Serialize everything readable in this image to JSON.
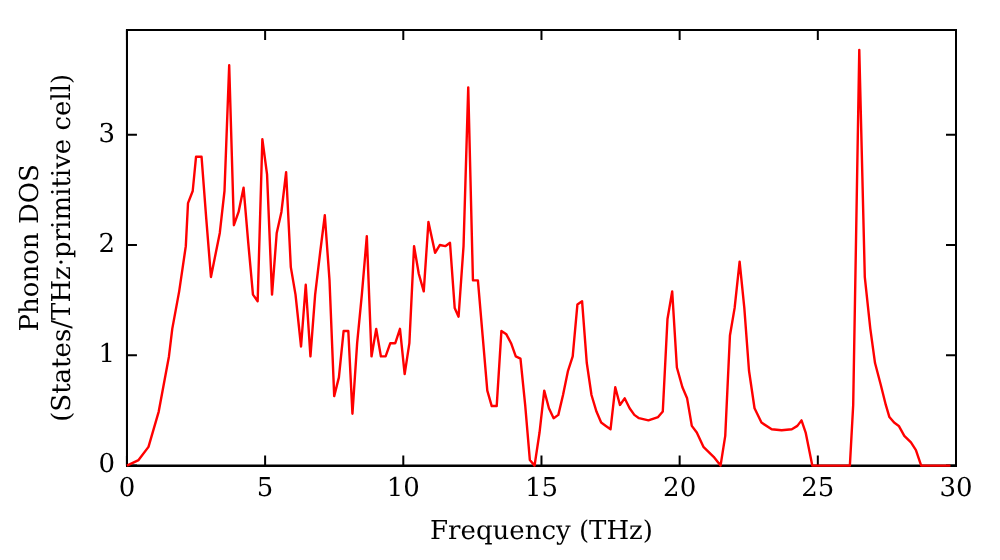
{
  "chart_data": {
    "type": "line",
    "xlabel": "Frequency (THz)",
    "ylabel": "Phonon DOS\n(States/THz·primitive cell)",
    "xlim": [
      0,
      30
    ],
    "ylim": [
      0,
      3.95
    ],
    "xticks": [
      0,
      5,
      10,
      15,
      20,
      25,
      30
    ],
    "yticks": [
      0,
      1,
      2,
      3
    ],
    "grid": false,
    "legend": false,
    "marker": "none",
    "line_style": "solid",
    "series": [
      {
        "color": "#ff0000",
        "x": [
          0,
          0.42,
          0.78,
          1.15,
          1.52,
          1.64,
          1.89,
          2.13,
          2.21,
          2.38,
          2.5,
          2.7,
          2.87,
          3.04,
          3.36,
          3.53,
          3.7,
          3.87,
          4.04,
          4.22,
          4.39,
          4.56,
          4.73,
          4.9,
          5.07,
          5.25,
          5.42,
          5.59,
          5.76,
          5.93,
          6.1,
          6.3,
          6.47,
          6.64,
          6.81,
          6.99,
          7.16,
          7.33,
          7.5,
          7.67,
          7.84,
          8.01,
          8.16,
          8.33,
          8.5,
          8.68,
          8.85,
          9.02,
          9.19,
          9.36,
          9.53,
          9.71,
          9.88,
          10.05,
          10.22,
          10.39,
          10.56,
          10.74,
          10.91,
          11.15,
          11.32,
          11.52,
          11.69,
          11.86,
          12.0,
          12.18,
          12.35,
          12.52,
          12.7,
          12.87,
          13.04,
          13.2,
          13.38,
          13.55,
          13.73,
          13.9,
          14.07,
          14.24,
          14.41,
          14.58,
          14.75,
          14.93,
          15.1,
          15.27,
          15.44,
          15.61,
          15.78,
          15.96,
          16.13,
          16.3,
          16.47,
          16.64,
          16.81,
          16.99,
          17.16,
          17.33,
          17.5,
          17.67,
          17.84,
          18.01,
          18.19,
          18.36,
          18.53,
          18.87,
          19.22,
          19.39,
          19.56,
          19.73,
          19.9,
          20.1,
          20.27,
          20.44,
          20.62,
          20.86,
          21.23,
          21.48,
          21.65,
          21.82,
          21.99,
          22.17,
          22.34,
          22.51,
          22.71,
          22.96,
          23.33,
          23.69,
          24.06,
          24.26,
          24.41,
          24.56,
          24.8,
          26.16,
          26.28,
          26.5,
          26.7,
          26.9,
          27.07,
          27.27,
          27.46,
          27.59,
          27.76,
          27.93,
          28.13,
          28.37,
          28.55,
          28.74,
          29.8
        ],
        "values": [
          0,
          0.05,
          0.17,
          0.49,
          0.99,
          1.24,
          1.58,
          1.99,
          2.38,
          2.49,
          2.8,
          2.8,
          2.24,
          1.71,
          2.11,
          2.49,
          3.63,
          2.18,
          2.3,
          2.52,
          2.02,
          1.55,
          1.49,
          2.96,
          2.64,
          1.55,
          2.11,
          2.3,
          2.66,
          1.8,
          1.55,
          1.08,
          1.64,
          0.99,
          1.55,
          1.93,
          2.27,
          1.68,
          0.63,
          0.8,
          1.22,
          1.22,
          0.47,
          1.11,
          1.55,
          2.08,
          0.99,
          1.24,
          0.99,
          0.99,
          1.11,
          1.11,
          1.24,
          0.83,
          1.11,
          1.99,
          1.74,
          1.58,
          2.21,
          1.93,
          2.0,
          1.99,
          2.02,
          1.43,
          1.35,
          1.99,
          3.43,
          1.68,
          1.68,
          1.18,
          0.68,
          0.54,
          0.54,
          1.22,
          1.19,
          1.11,
          0.99,
          0.97,
          0.55,
          0.05,
          0,
          0.3,
          0.68,
          0.52,
          0.43,
          0.46,
          0.64,
          0.86,
          0.99,
          1.46,
          1.49,
          0.93,
          0.64,
          0.49,
          0.39,
          0.36,
          0.33,
          0.71,
          0.55,
          0.61,
          0.52,
          0.46,
          0.43,
          0.41,
          0.44,
          0.49,
          1.33,
          1.58,
          0.89,
          0.71,
          0.61,
          0.36,
          0.3,
          0.17,
          0.08,
          0,
          0.27,
          1.18,
          1.43,
          1.85,
          1.43,
          0.86,
          0.52,
          0.39,
          0.33,
          0.32,
          0.33,
          0.36,
          0.41,
          0.3,
          0,
          0,
          0.55,
          3.77,
          1.71,
          1.24,
          0.93,
          0.74,
          0.55,
          0.44,
          0.39,
          0.36,
          0.27,
          0.21,
          0.14,
          0,
          0
        ]
      }
    ]
  }
}
